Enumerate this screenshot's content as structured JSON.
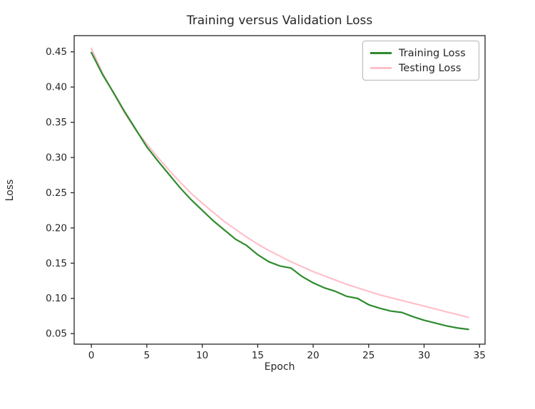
{
  "figure": {
    "background": "#ffffff",
    "spine_color": "#262626",
    "text_color": "#262626"
  },
  "chart_data": {
    "type": "line",
    "title": "Training versus Validation Loss",
    "xlabel": "Epoch",
    "ylabel": "Loss",
    "x": [
      0,
      1,
      2,
      3,
      4,
      5,
      6,
      7,
      8,
      9,
      10,
      11,
      12,
      13,
      14,
      15,
      16,
      17,
      18,
      19,
      20,
      21,
      22,
      23,
      24,
      25,
      26,
      27,
      28,
      29,
      30,
      31,
      32,
      33,
      34
    ],
    "series": [
      {
        "name": "Training Loss",
        "color": "#2e8b2e",
        "linewidth": 2.2,
        "values": [
          0.449,
          0.418,
          0.392,
          0.365,
          0.34,
          0.315,
          0.295,
          0.276,
          0.257,
          0.24,
          0.225,
          0.21,
          0.197,
          0.184,
          0.175,
          0.162,
          0.152,
          0.146,
          0.143,
          0.131,
          0.122,
          0.115,
          0.11,
          0.103,
          0.1,
          0.091,
          0.086,
          0.082,
          0.08,
          0.074,
          0.069,
          0.065,
          0.061,
          0.058,
          0.056
        ]
      },
      {
        "name": "Testing Loss",
        "color": "#ffc0cb",
        "linewidth": 2.2,
        "values": [
          0.455,
          0.42,
          0.391,
          0.363,
          0.339,
          0.319,
          0.3,
          0.282,
          0.265,
          0.249,
          0.235,
          0.222,
          0.209,
          0.198,
          0.187,
          0.177,
          0.168,
          0.16,
          0.152,
          0.145,
          0.138,
          0.132,
          0.126,
          0.12,
          0.115,
          0.11,
          0.105,
          0.101,
          0.097,
          0.093,
          0.089,
          0.085,
          0.081,
          0.077,
          0.073
        ]
      }
    ],
    "xticks": [
      0,
      5,
      10,
      15,
      20,
      25,
      30,
      35
    ],
    "yticks": [
      0.05,
      0.1,
      0.15,
      0.2,
      0.25,
      0.3,
      0.35,
      0.4,
      0.45
    ],
    "xlim": [
      -1.55,
      35.5
    ],
    "ylim": [
      0.035,
      0.473
    ],
    "legend_position": "upper right",
    "grid": false
  }
}
